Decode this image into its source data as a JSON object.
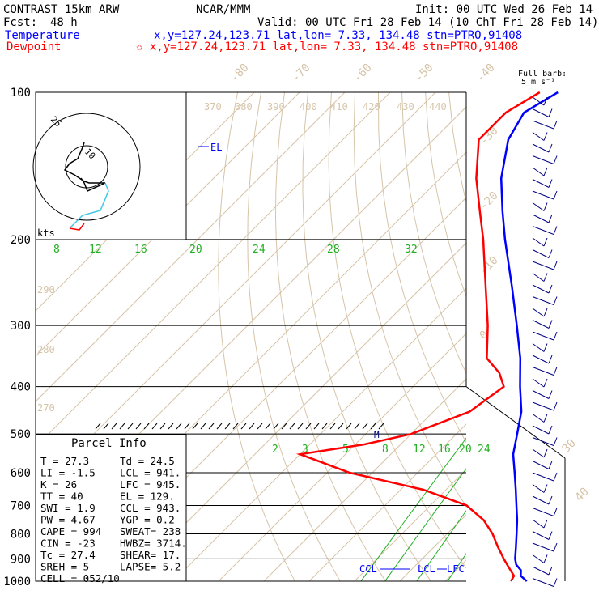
{
  "header": {
    "model": "CONTRAST 15km ARW",
    "org": "NCAR/MMM",
    "init": "Init: 00 UTC Wed 26 Feb 14",
    "fcst_label": "Fcst:",
    "fcst_value": "48 h",
    "valid": "Valid: 00 UTC Fri 28 Feb 14 (10 ChT Fri 28 Feb 14)",
    "temperature_label": "Temperature",
    "temperature_info": "x,y=127.24,123.71    lat,lon=  7.33, 134.48   stn=PTRO,91408",
    "dewpoint_label": "Dewpoint",
    "dewpoint_info": "✩ x,y=127.24,123.71    lat,lon=  7.33, 134.48   stn=PTRO,91408"
  },
  "colors": {
    "temperature": "#0000ff",
    "dewpoint": "#ff0000",
    "isotherm": "#d6c4a8",
    "mixing_ratio": "#22b022",
    "hodo_low": "#ff0000",
    "hodo_mid": "#40c8e8",
    "barb": "#000080"
  },
  "chart_data": {
    "type": "line",
    "title": "Skew-T log-P sounding",
    "pressure_levels": [
      100,
      200,
      300,
      400,
      500,
      600,
      700,
      800,
      900,
      1000
    ],
    "isotherm_labels": [
      "-80",
      "-70",
      "-60",
      "-50",
      "-40",
      "-30",
      "-20",
      "-10",
      "0",
      "30",
      "40"
    ],
    "theta_labels": [
      "370",
      "380",
      "390",
      "400",
      "410",
      "420",
      "430",
      "440",
      "290",
      "280",
      "270"
    ],
    "mixing_ratio_labels_upper": [
      "8",
      "12",
      "16",
      "20",
      "24",
      "28",
      "32"
    ],
    "mixing_ratio_labels_lower": [
      "2",
      "3",
      "5",
      "8",
      "12",
      "16",
      "20",
      "24"
    ],
    "series": [
      {
        "name": "Temperature",
        "points": [
          [
            1000,
            28.0
          ],
          [
            975,
            25.5
          ],
          [
            950,
            24.3
          ],
          [
            925,
            22.0
          ],
          [
            900,
            20.5
          ],
          [
            850,
            18.0
          ],
          [
            800,
            15.3
          ],
          [
            750,
            12.4
          ],
          [
            700,
            9.0
          ],
          [
            650,
            5.4
          ],
          [
            600,
            1.4
          ],
          [
            550,
            -3.0
          ],
          [
            500,
            -6.6
          ],
          [
            450,
            -10.6
          ],
          [
            400,
            -16.4
          ],
          [
            350,
            -22.6
          ],
          [
            300,
            -30.6
          ],
          [
            250,
            -40.2
          ],
          [
            200,
            -52.2
          ],
          [
            175,
            -59.0
          ],
          [
            150,
            -66.5
          ],
          [
            125,
            -73.5
          ],
          [
            110,
            -76.0
          ],
          [
            100,
            -73.0
          ]
        ]
      },
      {
        "name": "Dewpoint",
        "points": [
          [
            1000,
            24.5
          ],
          [
            975,
            24.0
          ],
          [
            950,
            22.0
          ],
          [
            925,
            20.0
          ],
          [
            900,
            18.0
          ],
          [
            850,
            14.0
          ],
          [
            800,
            10.0
          ],
          [
            750,
            5.0
          ],
          [
            700,
            -2.0
          ],
          [
            650,
            -15.0
          ],
          [
            600,
            -35.0
          ],
          [
            550,
            -50.0
          ],
          [
            525,
            -38.0
          ],
          [
            500,
            -30.0
          ],
          [
            450,
            -22.0
          ],
          [
            400,
            -20.0
          ],
          [
            375,
            -24.0
          ],
          [
            350,
            -30.0
          ],
          [
            300,
            -37.0
          ],
          [
            250,
            -46.0
          ],
          [
            200,
            -57.0
          ],
          [
            175,
            -64.0
          ],
          [
            150,
            -72.0
          ],
          [
            125,
            -80.0
          ],
          [
            110,
            -80.0
          ],
          [
            100,
            -77.0
          ]
        ]
      }
    ],
    "markers": {
      "el": "EL",
      "ccl": "CCL",
      "lcl": "LCL",
      "lfc": "LFC",
      "m": "M"
    },
    "parcel_info": {
      "title": "Parcel Info",
      "rows": [
        [
          "T    =    27.3",
          "Td =   24.5"
        ],
        [
          "LI   =    -1.5",
          "LCL =   941."
        ],
        [
          "K    =      26",
          "LFC =   945."
        ],
        [
          "TT   =      40",
          "EL  =   129."
        ],
        [
          "SWI  =     1.9",
          "CCL =   943."
        ],
        [
          "PW   =    4.67",
          "YGP =    0.2"
        ],
        [
          "CAPE =     994",
          "SWEAT=   238"
        ],
        [
          "CIN  =     -23",
          "HWBZ= 3714."
        ],
        [
          "Tc   =    27.4",
          "SHEAR=   17."
        ],
        [
          "SREH =       5",
          "LAPSE=   5.2"
        ],
        [
          "CELL =  052/10",
          ""
        ]
      ]
    },
    "hodograph": {
      "ring_labels": [
        "25",
        "10"
      ],
      "units_label": "kts"
    },
    "wind_barb_legend": {
      "title": "Full barb:",
      "units": "5 m s⁻¹"
    }
  }
}
